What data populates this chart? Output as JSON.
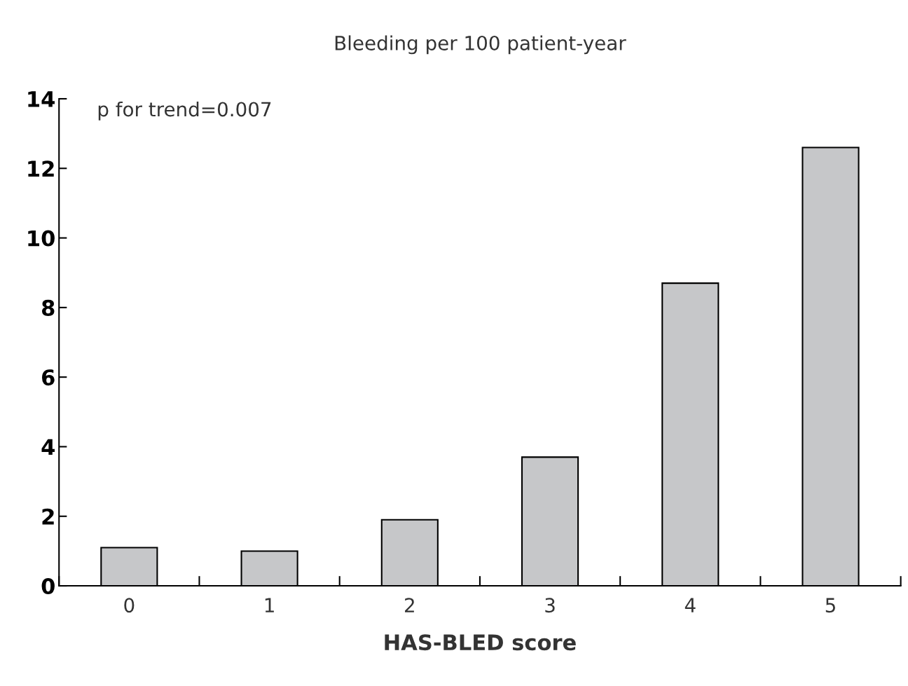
{
  "chart_data": {
    "type": "bar",
    "title": "Bleeding per 100 patient-year",
    "xlabel": "HAS-BLED score",
    "categories": [
      "0",
      "1",
      "2",
      "3",
      "4",
      "5"
    ],
    "values": [
      1.1,
      1.0,
      1.9,
      3.7,
      8.7,
      12.6
    ],
    "color": "#c6c7c9",
    "ylim": [
      0,
      14
    ],
    "yticks": [
      0,
      2,
      4,
      6,
      8,
      10,
      12,
      14
    ],
    "grid": false,
    "annotations": [
      "p for trend=0.007"
    ]
  }
}
